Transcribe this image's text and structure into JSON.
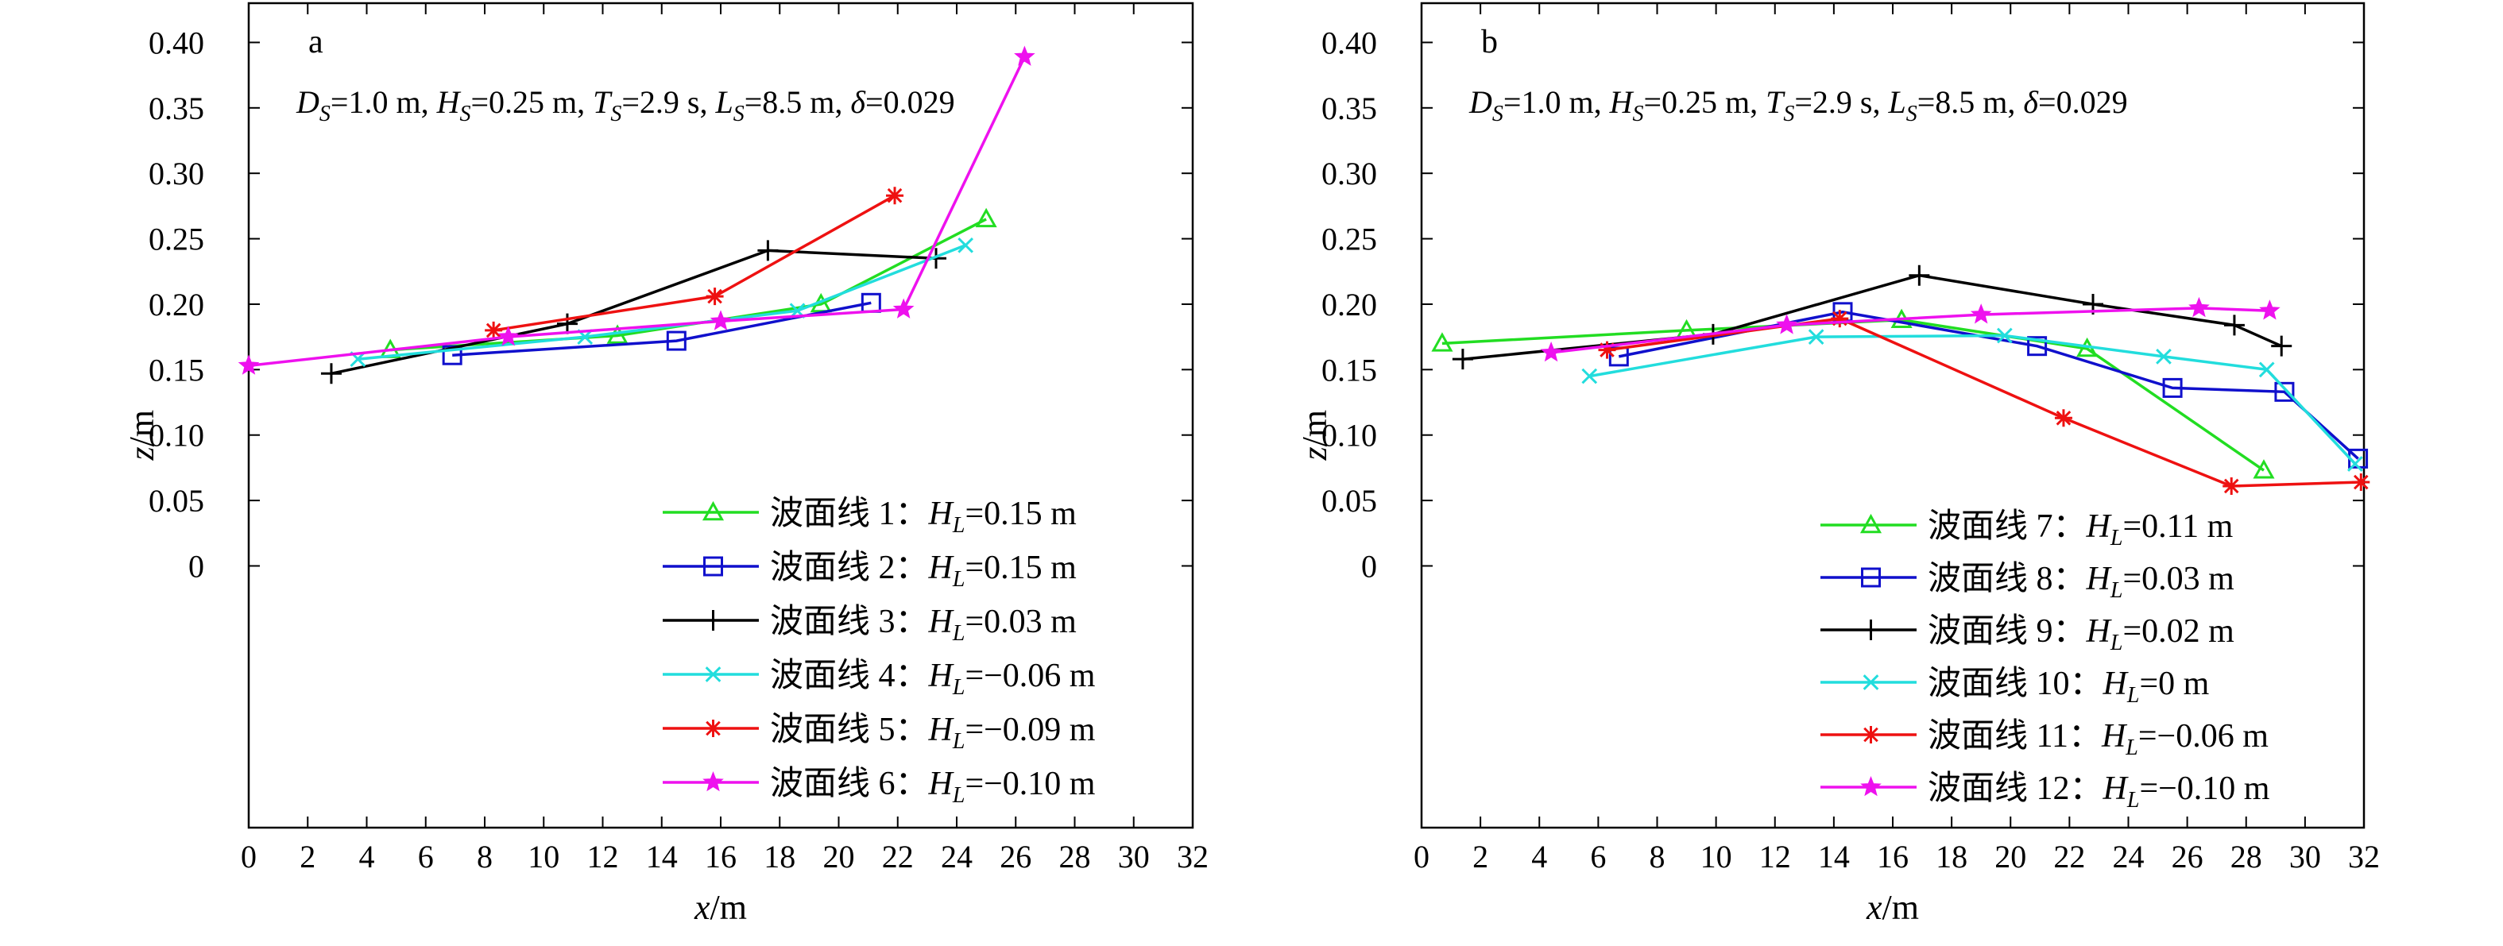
{
  "chart_data": [
    {
      "type": "line",
      "panel_letter": "a",
      "params": {
        "D": "1.0 m",
        "H": "0.25 m",
        "T": "2.9 s",
        "L": "8.5 m",
        "delta": "0.029"
      },
      "xlabel": "x/m",
      "ylabel": "z/m",
      "xlim": [
        0,
        32
      ],
      "ylim": [
        -0.2,
        0.43
      ],
      "x_ticks": [
        "0",
        "2",
        "4",
        "6",
        "8",
        "10",
        "12",
        "14",
        "16",
        "18",
        "20",
        "22",
        "24",
        "26",
        "28",
        "30",
        "32"
      ],
      "y_ticks": [
        "0",
        "0.05",
        "0.10",
        "0.15",
        "0.20",
        "0.25",
        "0.30",
        "0.35",
        "0.40"
      ],
      "legend_position": "lower-right",
      "series": [
        {
          "name": "波面线 1",
          "hl": "0.15 m",
          "color": "#22dd22",
          "marker": "triangle",
          "x": [
            4.8,
            12.5,
            19.4,
            25.0
          ],
          "y": [
            0.165,
            0.176,
            0.2,
            0.265
          ]
        },
        {
          "name": "波面线 2",
          "hl": "0.15 m",
          "color": "#1010cc",
          "marker": "square",
          "x": [
            6.9,
            14.5,
            21.1
          ],
          "y": [
            0.161,
            0.172,
            0.201
          ]
        },
        {
          "name": "波面线 3",
          "hl": "0.03 m",
          "color": "#000000",
          "marker": "plus",
          "x": [
            2.8,
            10.8,
            17.6,
            23.3
          ],
          "y": [
            0.147,
            0.185,
            0.241,
            0.235
          ]
        },
        {
          "name": "波面线 4",
          "hl": "−0.06 m",
          "color": "#22dddd",
          "marker": "x",
          "x": [
            3.7,
            11.4,
            18.6,
            24.3
          ],
          "y": [
            0.158,
            0.175,
            0.195,
            0.245
          ]
        },
        {
          "name": "波面线 5",
          "hl": "−0.09 m",
          "color": "#ee1111",
          "marker": "asterisk",
          "x": [
            8.3,
            15.8,
            21.9
          ],
          "y": [
            0.18,
            0.206,
            0.283
          ]
        },
        {
          "name": "波面线 6",
          "hl": "−0.10 m",
          "color": "#ee11ee",
          "marker": "star",
          "x": [
            0.0,
            8.8,
            16.0,
            22.2,
            26.3
          ],
          "y": [
            0.153,
            0.175,
            0.187,
            0.196,
            0.389
          ]
        }
      ]
    },
    {
      "type": "line",
      "panel_letter": "b",
      "params": {
        "D": "1.0 m",
        "H": "0.25 m",
        "T": "2.9 s",
        "L": "8.5 m",
        "delta": "0.029"
      },
      "xlabel": "x/m",
      "ylabel": "z/m",
      "xlim": [
        0,
        32
      ],
      "ylim": [
        -0.2,
        0.43
      ],
      "x_ticks": [
        "0",
        "2",
        "4",
        "6",
        "8",
        "10",
        "12",
        "14",
        "16",
        "18",
        "20",
        "22",
        "24",
        "26",
        "28",
        "30",
        "32"
      ],
      "y_ticks": [
        "0",
        "0.05",
        "0.10",
        "0.15",
        "0.20",
        "0.25",
        "0.30",
        "0.35",
        "0.40"
      ],
      "legend_position": "lower-right",
      "series": [
        {
          "name": "波面线 7",
          "hl": "0.11 m",
          "color": "#22dd22",
          "marker": "triangle",
          "x": [
            0.7,
            9.0,
            16.3,
            22.6,
            28.6
          ],
          "y": [
            0.17,
            0.18,
            0.188,
            0.166,
            0.073
          ]
        },
        {
          "name": "波面线 8",
          "hl": "0.03 m",
          "color": "#1010cc",
          "marker": "square",
          "x": [
            6.7,
            14.3,
            20.9,
            25.5,
            29.3,
            31.8
          ],
          "y": [
            0.16,
            0.194,
            0.168,
            0.136,
            0.133,
            0.082
          ]
        },
        {
          "name": "波面线 9",
          "hl": "0.02 m",
          "color": "#000000",
          "marker": "plus",
          "x": [
            1.4,
            9.9,
            16.9,
            22.8,
            27.6,
            29.2
          ],
          "y": [
            0.158,
            0.177,
            0.222,
            0.2,
            0.184,
            0.168
          ]
        },
        {
          "name": "波面线 10",
          "hl": "0 m",
          "color": "#22dddd",
          "marker": "x",
          "x": [
            5.7,
            13.4,
            19.8,
            25.2,
            28.7,
            31.7
          ],
          "y": [
            0.145,
            0.175,
            0.176,
            0.16,
            0.15,
            0.078
          ]
        },
        {
          "name": "波面线 11",
          "hl": "−0.06 m",
          "color": "#ee1111",
          "marker": "asterisk",
          "x": [
            6.3,
            14.2,
            21.8,
            27.5,
            31.9
          ],
          "y": [
            0.165,
            0.189,
            0.113,
            0.061,
            0.064
          ]
        },
        {
          "name": "波面线 12",
          "hl": "−0.10 m",
          "color": "#ee11ee",
          "marker": "star",
          "x": [
            4.4,
            12.4,
            19.0,
            26.4,
            28.8
          ],
          "y": [
            0.163,
            0.184,
            0.192,
            0.197,
            0.195
          ]
        }
      ]
    }
  ]
}
